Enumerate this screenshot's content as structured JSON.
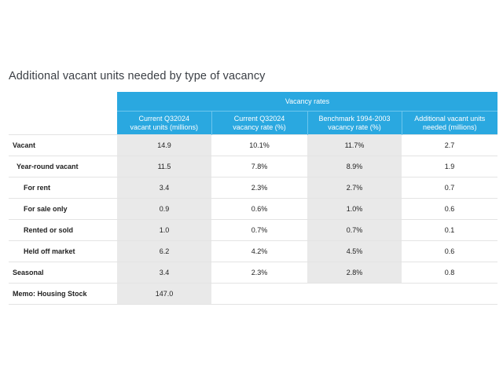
{
  "title": "Additional vacant units needed by type of vacancy",
  "table": {
    "group_header": "Vacancy rates",
    "columns": [
      "Current Q32024\nvacant units (millions)",
      "Current Q32024\nvacancy rate (%)",
      "Benchmark 1994-2003\nvacancy rate (%)",
      "Additional vacant units\nneeded (millions)"
    ],
    "rows": [
      {
        "label": "Vacant",
        "cells": [
          "14.9",
          "10.1%",
          "11.7%",
          "2.7"
        ]
      },
      {
        "label": "Year-round vacant",
        "cells": [
          "11.5",
          "7.8%",
          "8.9%",
          "1.9"
        ]
      },
      {
        "label": "For rent",
        "cells": [
          "3.4",
          "2.3%",
          "2.7%",
          "0.7"
        ]
      },
      {
        "label": "For sale only",
        "cells": [
          "0.9",
          "0.6%",
          "1.0%",
          "0.6"
        ]
      },
      {
        "label": "Rented or sold",
        "cells": [
          "1.0",
          "0.7%",
          "0.7%",
          "0.1"
        ]
      },
      {
        "label": "Held off market",
        "cells": [
          "6.2",
          "4.2%",
          "4.5%",
          "0.6"
        ]
      },
      {
        "label": "Seasonal",
        "cells": [
          "3.4",
          "2.3%",
          "2.8%",
          "0.8"
        ]
      },
      {
        "label": "Memo: Housing Stock",
        "cells": [
          "147.0",
          "",
          "",
          ""
        ]
      }
    ]
  },
  "colors": {
    "header_blue": "#2aa8e0",
    "shade_gray": "#e9e9e9",
    "title_text": "#3b3f45"
  }
}
